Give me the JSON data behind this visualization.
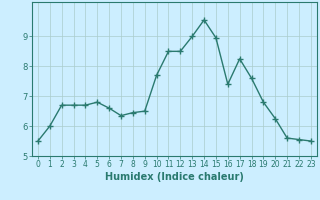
{
  "x": [
    0,
    1,
    2,
    3,
    4,
    5,
    6,
    7,
    8,
    9,
    10,
    11,
    12,
    13,
    14,
    15,
    16,
    17,
    18,
    19,
    20,
    21,
    22,
    23
  ],
  "y": [
    5.5,
    6.0,
    6.7,
    6.7,
    6.7,
    6.8,
    6.6,
    6.35,
    6.45,
    6.5,
    7.7,
    8.5,
    8.5,
    9.0,
    9.55,
    8.95,
    7.4,
    8.25,
    7.6,
    6.8,
    6.25,
    5.6,
    5.55,
    5.5
  ],
  "line_color": "#2a7a6f",
  "marker": "+",
  "marker_size": 4,
  "line_width": 1.0,
  "bg_color": "#cceeff",
  "grid_color": "#aacccc",
  "axis_color": "#2a7a6f",
  "xlabel": "Humidex (Indice chaleur)",
  "ylim": [
    5,
    10
  ],
  "xlim": [
    -0.5,
    23.5
  ],
  "yticks": [
    5,
    6,
    7,
    8,
    9
  ],
  "xticks": [
    0,
    1,
    2,
    3,
    4,
    5,
    6,
    7,
    8,
    9,
    10,
    11,
    12,
    13,
    14,
    15,
    16,
    17,
    18,
    19,
    20,
    21,
    22,
    23
  ],
  "tick_fontsize": 5.5,
  "xlabel_fontsize": 7.0
}
